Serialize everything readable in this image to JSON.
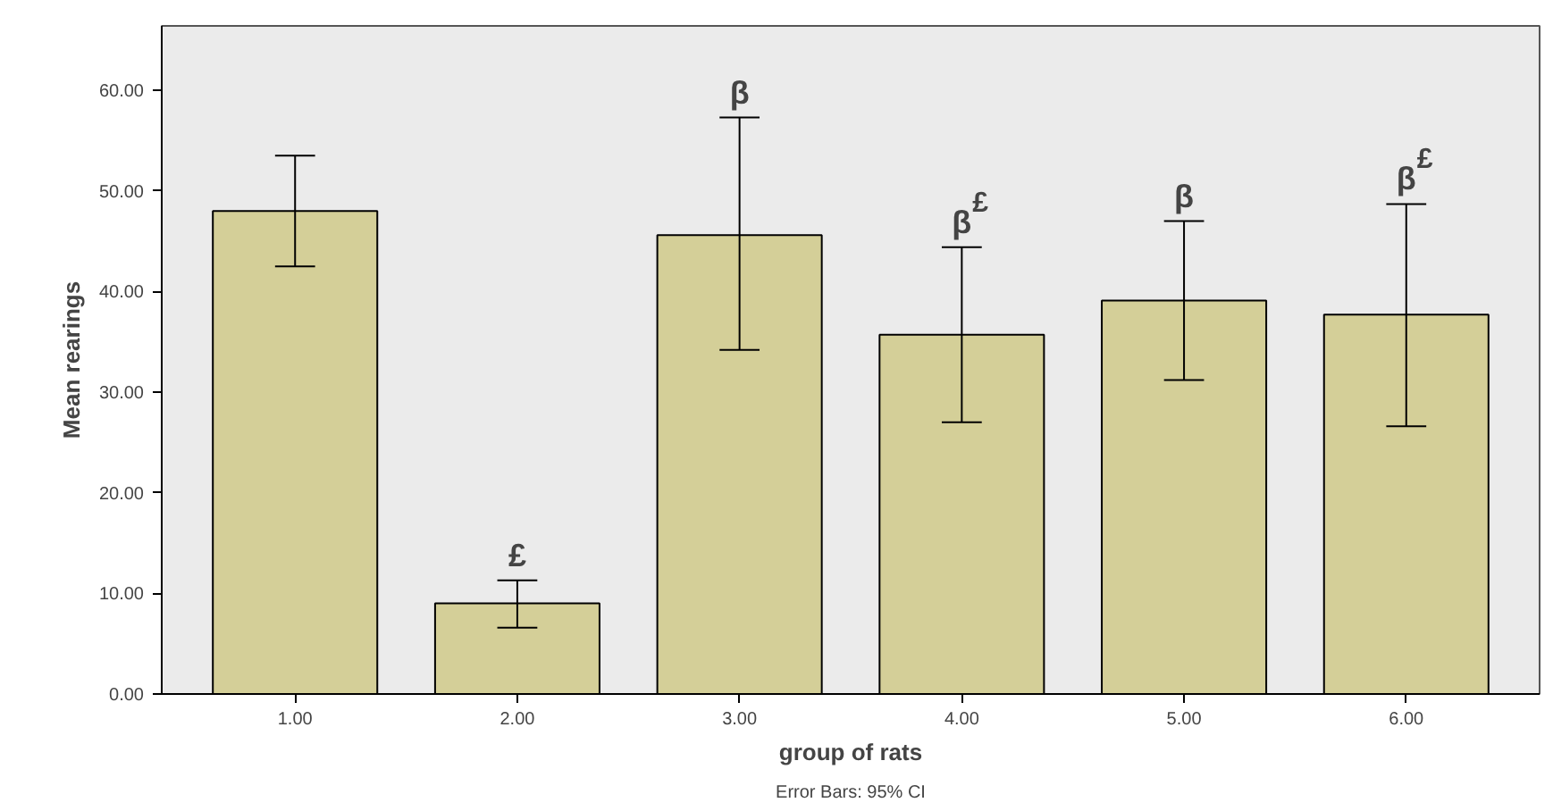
{
  "chart_data": {
    "type": "bar",
    "xlabel": "group of rats",
    "ylabel": "Mean rearings",
    "categories": [
      "1.00",
      "2.00",
      "3.00",
      "4.00",
      "5.00",
      "6.00"
    ],
    "values": [
      48.0,
      9.0,
      45.6,
      35.7,
      39.1,
      37.7
    ],
    "errors": [
      [
        42.5,
        53.5
      ],
      [
        6.6,
        11.3
      ],
      [
        34.2,
        57.3
      ],
      [
        27.0,
        44.4
      ],
      [
        31.2,
        47.0
      ],
      [
        26.6,
        48.7
      ]
    ],
    "color": "#d4cf98",
    "ylim": [
      0,
      66.4
    ],
    "yticks": [
      {
        "value": 0,
        "label": "0.00"
      },
      {
        "value": 10,
        "label": "10.00"
      },
      {
        "value": 20,
        "label": "20.00"
      },
      {
        "value": 30,
        "label": "30.00"
      },
      {
        "value": 40,
        "label": "40.00"
      },
      {
        "value": 50,
        "label": "50.00"
      },
      {
        "value": 60,
        "label": "60.00"
      }
    ],
    "grid": false,
    "annotations": [
      {
        "text": "£",
        "x": "2.00",
        "y": 11.3
      },
      {
        "text": "β",
        "x": "3.00",
        "y": 57.3
      },
      {
        "text": "β$^{£}$",
        "x": "4.00",
        "y": 44.4
      },
      {
        "text": "β",
        "x": "5.00",
        "y": 47.0
      },
      {
        "text": "β$^{£}$",
        "x": "6.00",
        "y": 48.7
      },
      "Error Bars: 95% CI"
    ]
  }
}
